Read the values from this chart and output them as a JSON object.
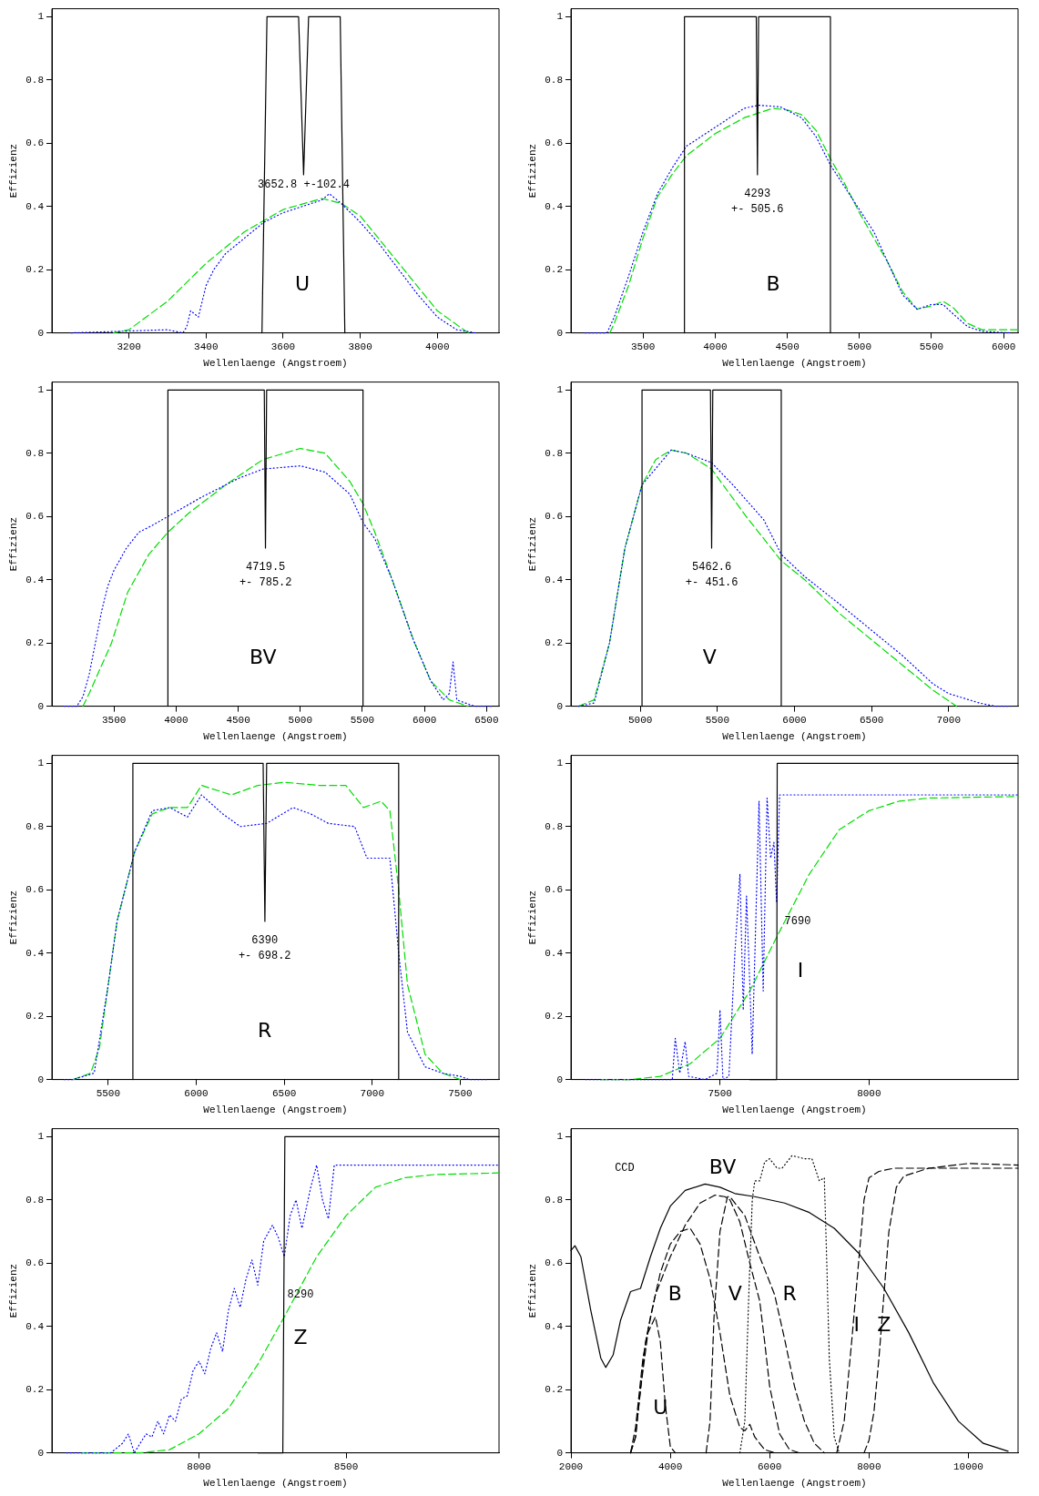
{
  "chart_data": [
    {
      "type": "line",
      "xlabel": "Wellenlaenge (Angstroem)",
      "ylabel": "Effizienz",
      "xlim": [
        3000,
        4160
      ],
      "xticks": [
        3200,
        3400,
        3600,
        3800,
        4000
      ],
      "ylim": [
        0,
        1.025
      ],
      "yticks": [
        0,
        0.2,
        0.4,
        0.6,
        0.8,
        1
      ],
      "marker": "none",
      "series": [
        {
          "color": "#000000",
          "line_style": "solid",
          "x": [
            3545,
            3558,
            3640,
            3653,
            3666,
            3748,
            3760
          ],
          "values": [
            0,
            1,
            1,
            0.5,
            1,
            1,
            0
          ]
        },
        {
          "color": "#0000ff",
          "line_style": "dotted",
          "x": [
            3050,
            3300,
            3340,
            3350,
            3360,
            3380,
            3400,
            3420,
            3450,
            3500,
            3550,
            3600,
            3650,
            3700,
            3720,
            3750,
            3800,
            3850,
            3900,
            3950,
            4000,
            4050,
            4100
          ],
          "values": [
            0,
            0.01,
            0,
            0.02,
            0.07,
            0.05,
            0.15,
            0.2,
            0.25,
            0.3,
            0.35,
            0.38,
            0.4,
            0.42,
            0.44,
            0.41,
            0.35,
            0.28,
            0.2,
            0.12,
            0.05,
            0.01,
            0
          ]
        },
        {
          "color": "#00dd00",
          "line_style": "dashed",
          "x": [
            3160,
            3200,
            3300,
            3400,
            3500,
            3600,
            3700,
            3750,
            3800,
            3900,
            4000,
            4080
          ],
          "values": [
            0,
            0.01,
            0.1,
            0.22,
            0.32,
            0.39,
            0.425,
            0.41,
            0.37,
            0.22,
            0.07,
            0
          ]
        }
      ],
      "annotations": [
        "3652.8 +-102.4",
        "U"
      ]
    },
    {
      "type": "line",
      "xlabel": "Wellenlaenge (Angstroem)",
      "ylabel": "Effizienz",
      "xlim": [
        3000,
        6100
      ],
      "xticks": [
        3500,
        4000,
        4500,
        5000,
        5500,
        6000
      ],
      "ylim": [
        0,
        1.025
      ],
      "yticks": [
        0,
        0.2,
        0.4,
        0.6,
        0.8,
        1
      ],
      "marker": "none",
      "series": [
        {
          "color": "#000000",
          "line_style": "solid",
          "x": [
            3787,
            3787,
            4285,
            4293,
            4301,
            4799,
            4799
          ],
          "values": [
            0,
            1,
            1,
            0.5,
            1,
            1,
            0
          ]
        },
        {
          "color": "#0000ff",
          "line_style": "dotted",
          "x": [
            3100,
            3250,
            3300,
            3400,
            3500,
            3600,
            3700,
            3800,
            4000,
            4200,
            4300,
            4450,
            4600,
            4700,
            4800,
            4900,
            5000,
            5100,
            5200,
            5300,
            5400,
            5500,
            5580,
            5650,
            5750,
            5850,
            6050
          ],
          "values": [
            0,
            0,
            0.05,
            0.18,
            0.32,
            0.44,
            0.52,
            0.59,
            0.65,
            0.71,
            0.72,
            0.715,
            0.68,
            0.62,
            0.53,
            0.46,
            0.39,
            0.32,
            0.22,
            0.12,
            0.075,
            0.09,
            0.09,
            0.06,
            0.02,
            0.005,
            0
          ]
        },
        {
          "color": "#00dd00",
          "line_style": "dashed",
          "x": [
            3270,
            3300,
            3400,
            3500,
            3600,
            3700,
            3800,
            4000,
            4200,
            4400,
            4500,
            4600,
            4700,
            4800,
            4900,
            5000,
            5100,
            5200,
            5300,
            5400,
            5500,
            5580,
            5650,
            5750,
            5850,
            6100
          ],
          "values": [
            0,
            0.03,
            0.15,
            0.3,
            0.43,
            0.5,
            0.56,
            0.63,
            0.68,
            0.71,
            0.705,
            0.69,
            0.64,
            0.55,
            0.47,
            0.38,
            0.3,
            0.22,
            0.13,
            0.075,
            0.085,
            0.1,
            0.08,
            0.03,
            0.01,
            0.01
          ]
        }
      ],
      "annotations": [
        "4293",
        "+- 505.6",
        "B"
      ]
    },
    {
      "type": "line",
      "xlabel": "Wellenlaenge (Angstroem)",
      "ylabel": "Effizienz",
      "xlim": [
        3000,
        6600
      ],
      "xticks": [
        3500,
        4000,
        4500,
        5000,
        5500,
        6000,
        6500
      ],
      "ylim": [
        0,
        1.025
      ],
      "yticks": [
        0,
        0.2,
        0.4,
        0.6,
        0.8,
        1
      ],
      "marker": "none",
      "series": [
        {
          "color": "#000000",
          "line_style": "solid",
          "x": [
            3934,
            3934,
            4710,
            4719.5,
            4729,
            5505,
            5505
          ],
          "values": [
            0,
            1,
            1,
            0.5,
            1,
            1,
            0
          ]
        },
        {
          "color": "#0000ff",
          "line_style": "dotted",
          "x": [
            3100,
            3200,
            3250,
            3300,
            3350,
            3400,
            3450,
            3500,
            3600,
            3700,
            3800,
            3934,
            4200,
            4500,
            4700,
            5000,
            5200,
            5400,
            5505,
            5600,
            5740,
            5900,
            6050,
            6150,
            6200,
            6230,
            6260,
            6400,
            6550
          ],
          "values": [
            0,
            0,
            0.03,
            0.1,
            0.2,
            0.3,
            0.38,
            0.43,
            0.5,
            0.55,
            0.57,
            0.6,
            0.66,
            0.72,
            0.75,
            0.76,
            0.74,
            0.67,
            0.58,
            0.53,
            0.4,
            0.22,
            0.08,
            0.02,
            0.04,
            0.14,
            0.02,
            0,
            0
          ]
        },
        {
          "color": "#00dd00",
          "line_style": "dashed",
          "x": [
            3250,
            3300,
            3480,
            3610,
            3780,
            3934,
            4100,
            4400,
            4700,
            5000,
            5200,
            5400,
            5505,
            5600,
            5740,
            5920,
            6050,
            6200,
            6350
          ],
          "values": [
            0,
            0.04,
            0.2,
            0.36,
            0.48,
            0.55,
            0.61,
            0.7,
            0.78,
            0.815,
            0.8,
            0.71,
            0.64,
            0.55,
            0.4,
            0.2,
            0.08,
            0.02,
            0
          ]
        }
      ],
      "annotations": [
        "4719.5",
        "+- 785.2",
        "BV"
      ]
    },
    {
      "type": "line",
      "xlabel": "Wellenlaenge (Angstroem)",
      "ylabel": "Effizienz",
      "xlim": [
        4550,
        7450
      ],
      "xticks": [
        5000,
        5500,
        6000,
        6500,
        7000
      ],
      "ylim": [
        0,
        1.025
      ],
      "yticks": [
        0,
        0.2,
        0.4,
        0.6,
        0.8,
        1
      ],
      "marker": "none",
      "series": [
        {
          "color": "#000000",
          "line_style": "solid",
          "x": [
            5011,
            5011,
            5455,
            5462.6,
            5470,
            5914,
            5914
          ],
          "values": [
            0,
            1,
            1,
            0.5,
            1,
            1,
            0
          ]
        },
        {
          "color": "#0000ff",
          "line_style": "dotted",
          "x": [
            4600,
            4700,
            4800,
            4900,
            5011,
            5200,
            5300,
            5462,
            5600,
            5800,
            5914,
            6066,
            6300,
            6500,
            6700,
            6900,
            7000,
            7200,
            7300,
            7400
          ],
          "values": [
            0,
            0.01,
            0.2,
            0.5,
            0.7,
            0.81,
            0.8,
            0.77,
            0.7,
            0.59,
            0.48,
            0.41,
            0.32,
            0.24,
            0.16,
            0.07,
            0.04,
            0.01,
            0,
            0
          ]
        },
        {
          "color": "#00dd00",
          "line_style": "dashed",
          "x": [
            4600,
            4700,
            4800,
            4900,
            5011,
            5100,
            5200,
            5300,
            5462,
            5686,
            5914,
            6066,
            6300,
            6500,
            6700,
            6900,
            7050
          ],
          "values": [
            0,
            0.02,
            0.2,
            0.5,
            0.7,
            0.78,
            0.81,
            0.8,
            0.75,
            0.6,
            0.46,
            0.4,
            0.29,
            0.21,
            0.13,
            0.05,
            0
          ]
        }
      ],
      "annotations": [
        "5462.6",
        "+- 451.6",
        "V"
      ]
    },
    {
      "type": "line",
      "xlabel": "Wellenlaenge (Angstroem)",
      "ylabel": "Effizienz",
      "xlim": [
        5180,
        7720
      ],
      "xticks": [
        5500,
        6000,
        6500,
        7000,
        7500
      ],
      "ylim": [
        0,
        1.025
      ],
      "yticks": [
        0,
        0.2,
        0.4,
        0.6,
        0.8,
        1
      ],
      "marker": "none",
      "series": [
        {
          "color": "#000000",
          "line_style": "solid",
          "x": [
            5640,
            5640,
            6380,
            6390,
            6400,
            7150,
            7150
          ],
          "values": [
            0,
            1,
            1,
            0.5,
            1,
            1,
            0
          ]
        },
        {
          "color": "#0000ff",
          "line_style": "dotted",
          "x": [
            5250,
            5300,
            5420,
            5500,
            5550,
            5650,
            5750,
            5850,
            5950,
            6030,
            6150,
            6250,
            6400,
            6550,
            6650,
            6750,
            6900,
            6970,
            7050,
            7100,
            7150,
            7200,
            7300,
            7400,
            7500,
            7550,
            7650
          ],
          "values": [
            0,
            0,
            0.02,
            0.3,
            0.5,
            0.72,
            0.85,
            0.86,
            0.83,
            0.9,
            0.84,
            0.8,
            0.81,
            0.86,
            0.84,
            0.81,
            0.8,
            0.7,
            0.7,
            0.7,
            0.4,
            0.15,
            0.04,
            0.02,
            0.01,
            0,
            0
          ]
        },
        {
          "color": "#00dd00",
          "line_style": "dashed",
          "x": [
            5300,
            5400,
            5450,
            5500,
            5550,
            5650,
            5750,
            5850,
            5950,
            6030,
            6200,
            6350,
            6500,
            6700,
            6850,
            6950,
            7050,
            7100,
            7150,
            7200,
            7300,
            7400,
            7500
          ],
          "values": [
            0,
            0.02,
            0.1,
            0.3,
            0.5,
            0.72,
            0.84,
            0.86,
            0.86,
            0.93,
            0.9,
            0.93,
            0.94,
            0.93,
            0.93,
            0.86,
            0.88,
            0.85,
            0.6,
            0.3,
            0.08,
            0.02,
            0
          ]
        }
      ],
      "annotations": [
        "6390",
        "+- 698.2",
        "R"
      ]
    },
    {
      "type": "line",
      "xlabel": "Wellenlaenge (Angstroem)",
      "ylabel": "Effizienz",
      "xlim": [
        7000,
        8500
      ],
      "xticks": [
        7500,
        8000
      ],
      "ylim": [
        0,
        1.025
      ],
      "yticks": [
        0,
        0.2,
        0.4,
        0.6,
        0.8,
        1
      ],
      "marker": "none",
      "series": [
        {
          "color": "#000000",
          "line_style": "solid",
          "x": [
            7600,
            7690,
            7692,
            8500
          ],
          "values": [
            0,
            0,
            1,
            1
          ]
        },
        {
          "color": "#0000ff",
          "line_style": "dotted",
          "x": [
            7050,
            7340,
            7350,
            7365,
            7383,
            7395,
            7450,
            7490,
            7500,
            7510,
            7530,
            7550,
            7567,
            7578,
            7589,
            7600,
            7608,
            7631,
            7645,
            7658,
            7670,
            7681,
            7690,
            7700,
            8500
          ],
          "values": [
            0,
            0,
            0.13,
            0.02,
            0.12,
            0.01,
            0,
            0.02,
            0.22,
            0,
            0.01,
            0.4,
            0.65,
            0.22,
            0.58,
            0.3,
            0.08,
            0.88,
            0.28,
            0.89,
            0.7,
            0.75,
            0.56,
            0.9,
            0.9
          ]
        },
        {
          "color": "#00dd00",
          "line_style": "dashed",
          "x": [
            7100,
            7200,
            7300,
            7400,
            7500,
            7600,
            7690,
            7800,
            7900,
            8000,
            8100,
            8200,
            8500
          ],
          "values": [
            0,
            0,
            0.01,
            0.05,
            0.13,
            0.28,
            0.45,
            0.65,
            0.79,
            0.85,
            0.88,
            0.89,
            0.895
          ]
        }
      ],
      "annotations": [
        "7690",
        "I"
      ]
    },
    {
      "type": "line",
      "xlabel": "Wellenlaenge (Angstroem)",
      "ylabel": "Effizienz",
      "xlim": [
        7500,
        9020
      ],
      "xticks": [
        8000,
        8500
      ],
      "ylim": [
        0,
        1.025
      ],
      "yticks": [
        0,
        0.2,
        0.4,
        0.6,
        0.8,
        1
      ],
      "marker": "none",
      "series": [
        {
          "color": "#000000",
          "line_style": "solid",
          "x": [
            8200,
            8285,
            8292,
            9020
          ],
          "values": [
            0,
            0,
            1,
            1
          ]
        },
        {
          "color": "#0000ff",
          "line_style": "dotted",
          "x": [
            7550,
            7700,
            7740,
            7760,
            7780,
            7820,
            7840,
            7860,
            7880,
            7900,
            7920,
            7940,
            7960,
            7980,
            8000,
            8020,
            8040,
            8060,
            8080,
            8100,
            8120,
            8140,
            8160,
            8180,
            8200,
            8220,
            8250,
            8270,
            8290,
            8310,
            8330,
            8350,
            8380,
            8400,
            8420,
            8440,
            8460,
            9020
          ],
          "values": [
            0,
            0,
            0.03,
            0.06,
            0,
            0.06,
            0.05,
            0.1,
            0.06,
            0.12,
            0.1,
            0.17,
            0.18,
            0.26,
            0.29,
            0.25,
            0.33,
            0.38,
            0.32,
            0.45,
            0.52,
            0.46,
            0.55,
            0.61,
            0.53,
            0.67,
            0.72,
            0.68,
            0.62,
            0.75,
            0.8,
            0.71,
            0.84,
            0.91,
            0.8,
            0.74,
            0.91,
            0.91
          ]
        },
        {
          "color": "#00dd00",
          "line_style": "dashed",
          "x": [
            7600,
            7800,
            7900,
            8000,
            8100,
            8200,
            8290,
            8400,
            8500,
            8600,
            8700,
            8800,
            9020
          ],
          "values": [
            0,
            0,
            0.01,
            0.06,
            0.14,
            0.28,
            0.43,
            0.62,
            0.75,
            0.84,
            0.87,
            0.88,
            0.885
          ]
        }
      ],
      "annotations": [
        "8290",
        "Z"
      ]
    },
    {
      "type": "line",
      "xlabel": "Wellenlaenge (Angstroem)",
      "ylabel": "Effizienz",
      "xlim": [
        2000,
        11000
      ],
      "xticks": [
        2000,
        4000,
        6000,
        8000,
        10000
      ],
      "ylim": [
        0,
        1.025
      ],
      "yticks": [
        0,
        0.2,
        0.4,
        0.6,
        0.8,
        1
      ],
      "marker": "none",
      "series": [
        {
          "color": "#000000",
          "line_style": "solid",
          "x": [
            2000,
            2080,
            2200,
            2400,
            2600,
            2700,
            2850,
            3000,
            3200,
            3400,
            3600,
            3800,
            4000,
            4300,
            4700,
            5000,
            5300,
            5700,
            6300,
            6800,
            7300,
            7800,
            8300,
            8800,
            9300,
            9800,
            10300,
            10800
          ],
          "values": [
            0.64,
            0.655,
            0.62,
            0.45,
            0.3,
            0.27,
            0.31,
            0.42,
            0.51,
            0.52,
            0.62,
            0.71,
            0.78,
            0.83,
            0.85,
            0.84,
            0.82,
            0.81,
            0.79,
            0.76,
            0.71,
            0.63,
            0.52,
            0.38,
            0.22,
            0.1,
            0.03,
            0.005
          ]
        },
        {
          "color": "#000000",
          "line_style": "dashed",
          "x": [
            3200,
            3300,
            3400,
            3550,
            3700,
            3800,
            3900,
            4000,
            4100
          ],
          "values": [
            0,
            0.05,
            0.2,
            0.38,
            0.43,
            0.35,
            0.15,
            0.02,
            0
          ]
        },
        {
          "color": "#000000",
          "line_style": "dashed",
          "x": [
            3200,
            3300,
            3450,
            3600,
            3800,
            4000,
            4200,
            4400,
            4600,
            4800,
            5000,
            5200,
            5400,
            5500,
            5600,
            5700,
            5900,
            6100
          ],
          "values": [
            0,
            0.08,
            0.3,
            0.43,
            0.57,
            0.66,
            0.7,
            0.71,
            0.66,
            0.55,
            0.38,
            0.18,
            0.08,
            0.07,
            0.09,
            0.05,
            0.01,
            0
          ]
        },
        {
          "color": "#000000",
          "line_style": "dashed",
          "x": [
            3200,
            3300,
            3500,
            3700,
            4000,
            4300,
            4600,
            4900,
            5100,
            5200,
            5400,
            5600,
            5800,
            5900,
            6000,
            6200,
            6400,
            6600
          ],
          "values": [
            0,
            0.05,
            0.35,
            0.5,
            0.62,
            0.72,
            0.79,
            0.815,
            0.81,
            0.8,
            0.73,
            0.6,
            0.48,
            0.35,
            0.21,
            0.06,
            0.01,
            0
          ]
        },
        {
          "color": "#000000",
          "line_style": "dashed",
          "x": [
            4720,
            4800,
            4880,
            5000,
            5150,
            5200,
            5500,
            5800,
            6100,
            6300,
            6500,
            6700,
            6900,
            7100
          ],
          "values": [
            0,
            0.1,
            0.43,
            0.7,
            0.81,
            0.81,
            0.75,
            0.62,
            0.5,
            0.36,
            0.21,
            0.1,
            0.03,
            0
          ]
        },
        {
          "color": "#000000",
          "line_style": "dotted",
          "x": [
            5400,
            5500,
            5580,
            5650,
            5700,
            5800,
            5900,
            6000,
            6150,
            6250,
            6450,
            6700,
            6850,
            7000,
            7100,
            7150,
            7200,
            7300,
            7400
          ],
          "values": [
            0,
            0.1,
            0.5,
            0.8,
            0.86,
            0.86,
            0.92,
            0.93,
            0.9,
            0.9,
            0.94,
            0.93,
            0.93,
            0.86,
            0.87,
            0.6,
            0.3,
            0.05,
            0
          ]
        },
        {
          "color": "#000000",
          "line_style": "dashed",
          "x": [
            7350,
            7500,
            7650,
            7800,
            7900,
            8000,
            8200,
            8500,
            9000,
            11000
          ],
          "values": [
            0,
            0.1,
            0.35,
            0.62,
            0.8,
            0.87,
            0.89,
            0.9,
            0.9,
            0.9
          ]
        },
        {
          "color": "#000000",
          "line_style": "dashed",
          "x": [
            7900,
            8000,
            8100,
            8200,
            8300,
            8400,
            8550,
            8700,
            9200,
            10000,
            11000
          ],
          "values": [
            0,
            0.04,
            0.13,
            0.3,
            0.5,
            0.7,
            0.84,
            0.875,
            0.9,
            0.915,
            0.91
          ]
        }
      ],
      "annotations": [
        "CCD",
        "BV",
        "U",
        "B",
        "V",
        "R",
        "I",
        "Z"
      ]
    }
  ]
}
